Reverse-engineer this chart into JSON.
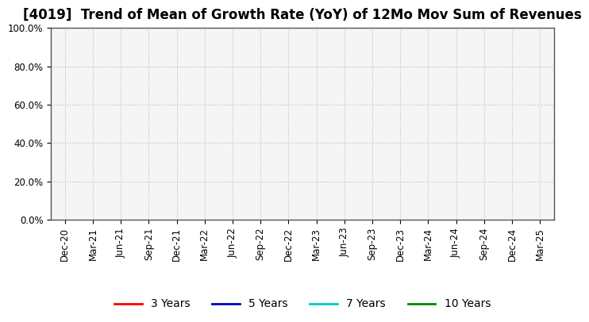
{
  "title": "[4019]  Trend of Mean of Growth Rate (YoY) of 12Mo Mov Sum of Revenues",
  "title_fontsize": 12,
  "background_color": "#ffffff",
  "plot_bg_color": "#f5f5f5",
  "ylim": [
    0.0,
    1.0
  ],
  "yticks": [
    0.0,
    0.2,
    0.4,
    0.6,
    0.8,
    1.0
  ],
  "ytick_labels": [
    "0.0%",
    "20.0%",
    "40.0%",
    "60.0%",
    "80.0%",
    "100.0%"
  ],
  "xtick_labels": [
    "Dec-20",
    "Mar-21",
    "Jun-21",
    "Sep-21",
    "Dec-21",
    "Mar-22",
    "Jun-22",
    "Sep-22",
    "Dec-22",
    "Mar-23",
    "Jun-23",
    "Sep-23",
    "Dec-23",
    "Mar-24",
    "Jun-24",
    "Sep-24",
    "Dec-24",
    "Mar-25"
  ],
  "grid_color": "#bbbbbb",
  "legend_entries": [
    {
      "label": "3 Years",
      "color": "#ff0000",
      "linewidth": 2
    },
    {
      "label": "5 Years",
      "color": "#0000cc",
      "linewidth": 2
    },
    {
      "label": "7 Years",
      "color": "#00cccc",
      "linewidth": 2
    },
    {
      "label": "10 Years",
      "color": "#008800",
      "linewidth": 2
    }
  ],
  "legend_fontsize": 10,
  "tick_fontsize": 8.5,
  "spine_color": "#555555"
}
